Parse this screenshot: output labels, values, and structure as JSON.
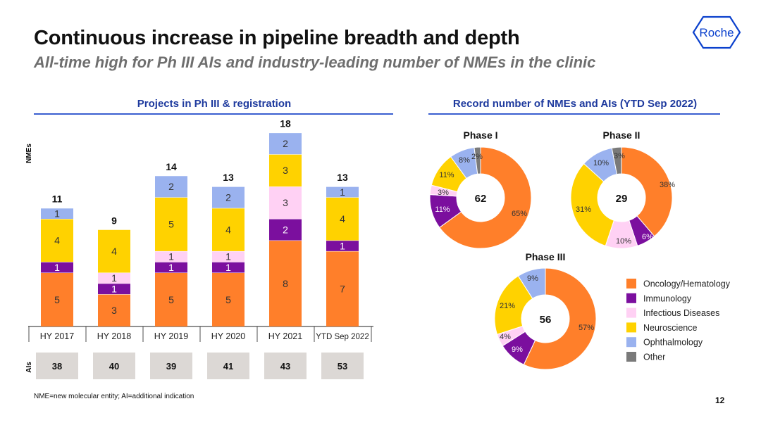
{
  "title": "Continuous increase in pipeline breadth and depth",
  "subtitle": "All-time high for Ph III AIs and industry-leading number of NMEs in the clinic",
  "logo": {
    "text": "Roche",
    "color": "#0b41cd"
  },
  "left_panel": {
    "title": "Projects in Ph III & registration",
    "nme_label": "NMEs",
    "ai_label": "AIs"
  },
  "right_panel": {
    "title": "Record number of NMEs and AIs (YTD Sep 2022)"
  },
  "footnote": "NME=new molecular entity; AI=additional indication",
  "page_number": "12",
  "colors": {
    "oncology": "#ff7f2a",
    "immunology": "#7b0f9e",
    "infectious": "#ffd1f4",
    "neuroscience": "#ffd200",
    "ophthalmology": "#9ab2ef",
    "other": "#7a7a7a",
    "title_blue": "#1e3a9e"
  },
  "chart_data": [
    {
      "type": "bar",
      "stacked": true,
      "title": "Projects in Ph III & registration",
      "ylabel": "NMEs",
      "categories": [
        "HY 2017",
        "HY 2018",
        "HY 2019",
        "HY 2020",
        "HY 2021",
        "YTD Sep 2022"
      ],
      "totals": [
        "11",
        "9",
        "14",
        "13",
        "18",
        "13"
      ],
      "series": [
        {
          "key": "oncology",
          "values": [
            5,
            3,
            5,
            5,
            8,
            7
          ]
        },
        {
          "key": "immunology",
          "values": [
            1,
            1,
            1,
            1,
            2,
            1
          ]
        },
        {
          "key": "infectious",
          "values": [
            0,
            1,
            1,
            1,
            3,
            0
          ]
        },
        {
          "key": "neuroscience",
          "values": [
            4,
            4,
            5,
            4,
            3,
            4
          ]
        },
        {
          "key": "ophthalmology",
          "values": [
            1,
            0,
            2,
            2,
            2,
            1
          ]
        }
      ],
      "ai_label": "AIs",
      "ai_values": [
        "38",
        "40",
        "39",
        "41",
        "43",
        "53"
      ]
    },
    {
      "type": "pie",
      "donut": true,
      "title": "Phase I",
      "center_label": "62",
      "slices": [
        {
          "key": "oncology",
          "value": 65,
          "label": "65%"
        },
        {
          "key": "immunology",
          "value": 11,
          "label": "11%"
        },
        {
          "key": "infectious",
          "value": 3,
          "label": "3%"
        },
        {
          "key": "neuroscience",
          "value": 11,
          "label": "11%"
        },
        {
          "key": "ophthalmology",
          "value": 8,
          "label": "8%"
        },
        {
          "key": "other",
          "value": 2,
          "label": "2%"
        }
      ]
    },
    {
      "type": "pie",
      "donut": true,
      "title": "Phase II",
      "center_label": "29",
      "slices": [
        {
          "key": "oncology",
          "value": 38,
          "label": "38%"
        },
        {
          "key": "immunology",
          "value": 6,
          "label": "6%"
        },
        {
          "key": "infectious",
          "value": 10,
          "label": "10%"
        },
        {
          "key": "neuroscience",
          "value": 31,
          "label": "31%"
        },
        {
          "key": "ophthalmology",
          "value": 10,
          "label": "10%"
        },
        {
          "key": "other",
          "value": 3,
          "label": "3%"
        }
      ]
    },
    {
      "type": "pie",
      "donut": true,
      "title": "Phase III",
      "center_label": "56",
      "slices": [
        {
          "key": "oncology",
          "value": 57,
          "label": "57%"
        },
        {
          "key": "immunology",
          "value": 9,
          "label": "9%"
        },
        {
          "key": "infectious",
          "value": 4,
          "label": "4%"
        },
        {
          "key": "neuroscience",
          "value": 21,
          "label": "21%"
        },
        {
          "key": "ophthalmology",
          "value": 9,
          "label": "9%"
        }
      ]
    }
  ],
  "legend": [
    {
      "key": "oncology",
      "label": "Oncology/Hematology"
    },
    {
      "key": "immunology",
      "label": "Immunology"
    },
    {
      "key": "infectious",
      "label": "Infectious Diseases"
    },
    {
      "key": "neuroscience",
      "label": "Neuroscience"
    },
    {
      "key": "ophthalmology",
      "label": "Ophthalmology"
    },
    {
      "key": "other",
      "label": "Other"
    }
  ]
}
